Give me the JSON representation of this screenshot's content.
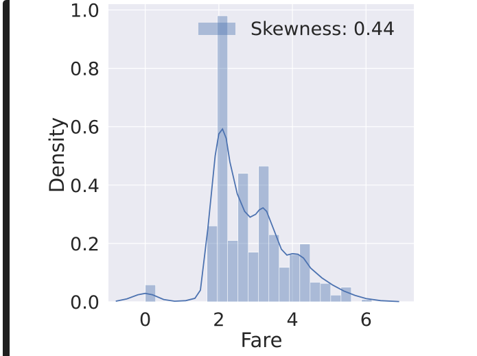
{
  "chart_data": {
    "type": "bar",
    "xlabel": "Fare",
    "ylabel": "Density",
    "xlim": [
      -1.0,
      7.3
    ],
    "ylim": [
      0.0,
      1.02
    ],
    "xticks": [
      "0",
      "2",
      "4",
      "6"
    ],
    "yticks": [
      "0.0",
      "0.2",
      "0.4",
      "0.6",
      "0.8",
      "1.0"
    ],
    "grid": true,
    "legend": {
      "placement": "top-right",
      "label": "Skewness: 0.44"
    },
    "colors": {
      "bar": "#4c72b0",
      "line": "#4c72b0",
      "background": "#eaeaf2",
      "grid": "#ffffff"
    },
    "histogram": {
      "bin_width": 0.28,
      "bins": [
        {
          "x0": 0.0,
          "density": 0.058
        },
        {
          "x0": 1.68,
          "density": 0.26
        },
        {
          "x0": 1.96,
          "density": 0.98
        },
        {
          "x0": 2.24,
          "density": 0.21
        },
        {
          "x0": 2.52,
          "density": 0.44
        },
        {
          "x0": 2.8,
          "density": 0.17
        },
        {
          "x0": 3.08,
          "density": 0.465
        },
        {
          "x0": 3.36,
          "density": 0.23
        },
        {
          "x0": 3.64,
          "density": 0.118
        },
        {
          "x0": 3.92,
          "density": 0.162
        },
        {
          "x0": 4.2,
          "density": 0.198
        },
        {
          "x0": 4.48,
          "density": 0.067
        },
        {
          "x0": 4.76,
          "density": 0.063
        },
        {
          "x0": 5.04,
          "density": 0.023
        },
        {
          "x0": 5.32,
          "density": 0.05
        },
        {
          "x0": 5.88,
          "density": 0.008
        }
      ]
    },
    "kde": {
      "x": [
        -0.8,
        -0.5,
        -0.2,
        0.0,
        0.2,
        0.5,
        0.8,
        1.1,
        1.35,
        1.5,
        1.7,
        1.9,
        2.0,
        2.1,
        2.2,
        2.3,
        2.5,
        2.7,
        2.85,
        3.0,
        3.1,
        3.2,
        3.3,
        3.5,
        3.7,
        3.85,
        4.0,
        4.15,
        4.3,
        4.5,
        4.8,
        5.1,
        5.4,
        5.7,
        6.0,
        6.4,
        6.9
      ],
      "y": [
        0.002,
        0.01,
        0.024,
        0.029,
        0.024,
        0.008,
        0.002,
        0.004,
        0.012,
        0.04,
        0.25,
        0.5,
        0.575,
        0.592,
        0.56,
        0.48,
        0.37,
        0.31,
        0.29,
        0.3,
        0.315,
        0.322,
        0.31,
        0.245,
        0.18,
        0.16,
        0.165,
        0.163,
        0.15,
        0.115,
        0.082,
        0.057,
        0.037,
        0.022,
        0.011,
        0.004,
        0.001
      ]
    }
  }
}
